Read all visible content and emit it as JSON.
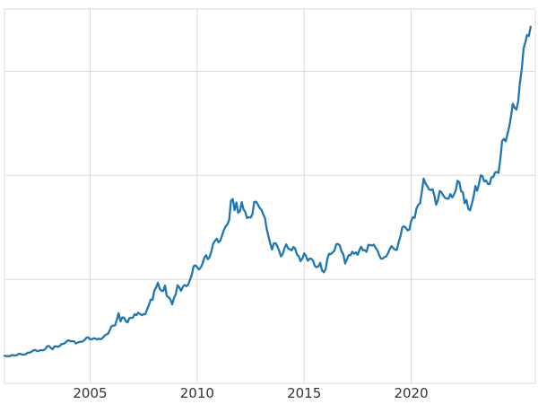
{
  "figure": {
    "background_color": "#ffffff"
  },
  "chart_data": {
    "type": "line",
    "title": "",
    "xlabel": "",
    "ylabel": "",
    "legend": "none",
    "grid": "on",
    "line_color": "#1f77b4",
    "grid_color": "#dcdcdc",
    "tick_label_color": "#333333",
    "xlim": [
      2001.0,
      2025.8
    ],
    "ylim": [
      0,
      3600
    ],
    "x_ticks": [
      {
        "value": 2005,
        "label": "2005"
      },
      {
        "value": 2010,
        "label": "2010"
      },
      {
        "value": 2015,
        "label": "2015"
      },
      {
        "value": 2020,
        "label": "2020"
      }
    ],
    "y_gridlines": [
      1000,
      2000,
      3000
    ],
    "x_start": 2001.0,
    "x_step": 0.083333,
    "values": [
      265,
      262,
      263,
      261,
      272,
      270,
      268,
      272,
      284,
      283,
      276,
      276,
      281,
      295,
      294,
      303,
      314,
      321,
      313,
      310,
      319,
      317,
      319,
      333,
      357,
      359,
      340,
      328,
      355,
      356,
      351,
      360,
      379,
      379,
      389,
      407,
      414,
      405,
      406,
      403,
      383,
      392,
      398,
      400,
      405,
      420,
      439,
      442,
      424,
      423,
      434,
      429,
      422,
      430,
      424,
      437,
      456,
      470,
      476,
      510,
      550,
      555,
      557,
      611,
      675,
      596,
      634,
      632,
      598,
      586,
      627,
      630,
      631,
      665,
      655,
      679,
      667,
      655,
      665,
      665,
      713,
      755,
      806,
      803,
      890,
      922,
      968,
      909,
      889,
      889,
      940,
      839,
      829,
      807,
      760,
      820,
      858,
      943,
      924,
      890,
      928,
      946,
      934,
      949,
      996,
      1043,
      1127,
      1135,
      1118,
      1095,
      1113,
      1149,
      1205,
      1233,
      1193,
      1216,
      1271,
      1342,
      1370,
      1391,
      1356,
      1373,
      1424,
      1474,
      1511,
      1529,
      1573,
      1756,
      1772,
      1666,
      1739,
      1640,
      1656,
      1743,
      1674,
      1650,
      1589,
      1598,
      1594,
      1626,
      1744,
      1747,
      1722,
      1688,
      1671,
      1628,
      1593,
      1487,
      1414,
      1343,
      1286,
      1347,
      1348,
      1316,
      1276,
      1221,
      1244,
      1300,
      1336,
      1298,
      1288,
      1279,
      1311,
      1295,
      1237,
      1222,
      1176,
      1200,
      1250,
      1227,
      1178,
      1198,
      1198,
      1181,
      1128,
      1117,
      1124,
      1159,
      1086,
      1068,
      1097,
      1199,
      1246,
      1242,
      1260,
      1276,
      1337,
      1340,
      1326,
      1266,
      1238,
      1152,
      1192,
      1234,
      1231,
      1266,
      1246,
      1260,
      1236,
      1283,
      1314,
      1279,
      1281,
      1264,
      1331,
      1330,
      1324,
      1334,
      1303,
      1281,
      1238,
      1201,
      1198,
      1215,
      1221,
      1250,
      1291,
      1320,
      1300,
      1285,
      1284,
      1359,
      1413,
      1500,
      1511,
      1495,
      1471,
      1479,
      1561,
      1597,
      1592,
      1683,
      1716,
      1732,
      1843,
      1969,
      1922,
      1900,
      1866,
      1858,
      1867,
      1808,
      1718,
      1762,
      1850,
      1835,
      1807,
      1784,
      1777,
      1777,
      1820,
      1787,
      1816,
      1856,
      1948,
      1934,
      1848,
      1836,
      1732,
      1765,
      1681,
      1664,
      1725,
      1797,
      1898,
      1852,
      1913,
      2000,
      1992,
      1942,
      1951,
      1918,
      1915,
      1982,
      1984,
      2026,
      2034,
      2024,
      2158,
      2330,
      2351,
      2327,
      2398,
      2470,
      2568,
      2690,
      2650,
      2633,
      2708,
      2897,
      3022,
      3220,
      3280,
      3350,
      3340,
      3430
    ]
  }
}
